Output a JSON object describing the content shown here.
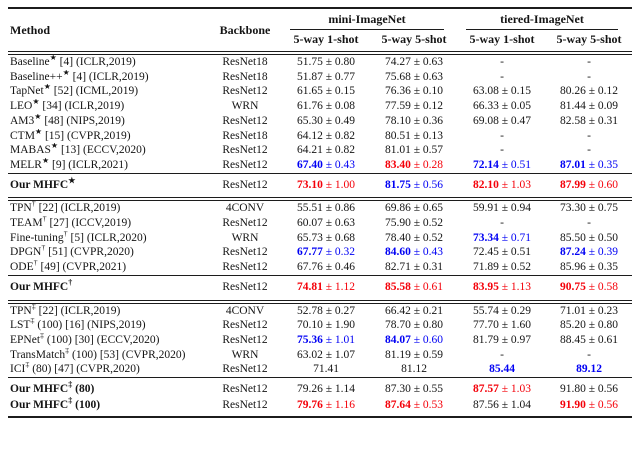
{
  "table": {
    "headers": {
      "method": "Method",
      "backbone": "Backbone",
      "groups": [
        "mini-ImageNet",
        "tiered-ImageNet"
      ],
      "subcolumns": [
        "5-way 1-shot",
        "5-way 5-shot",
        "5-way 1-shot",
        "5-way 5-shot"
      ]
    },
    "colors": {
      "best": "#f40009",
      "second": "#0000f4",
      "normal": "#141414"
    },
    "symbols": {
      "star": "★",
      "dagger": "†",
      "double_dagger": "‡",
      "plus_minus": "±",
      "missing": "-"
    },
    "sections": [
      {
        "rows": [
          {
            "name": "Baseline",
            "sup": "★",
            "rest": " [4] (ICLR,2019)",
            "backbone": "ResNet18",
            "cells": [
              {
                "v": "51.75",
                "pm": "0.80"
              },
              {
                "v": "74.27",
                "pm": "0.63"
              },
              {
                "dash": true
              },
              {
                "dash": true
              }
            ]
          },
          {
            "name": "Baseline++",
            "sup": "★",
            "rest": " [4] (ICLR,2019)",
            "backbone": "ResNet18",
            "cells": [
              {
                "v": "51.87",
                "pm": "0.77"
              },
              {
                "v": "75.68",
                "pm": "0.63"
              },
              {
                "dash": true
              },
              {
                "dash": true
              }
            ]
          },
          {
            "name": "TapNet",
            "sup": "★",
            "rest": " [52] (ICML,2019)",
            "backbone": "ResNet12",
            "cells": [
              {
                "v": "61.65",
                "pm": "0.15"
              },
              {
                "v": "76.36",
                "pm": "0.10"
              },
              {
                "v": "63.08",
                "pm": "0.15"
              },
              {
                "v": "80.26",
                "pm": "0.12"
              }
            ]
          },
          {
            "name": "LEO",
            "sup": "★",
            "rest": " [34] (ICLR,2019)",
            "backbone": "WRN",
            "cells": [
              {
                "v": "61.76",
                "pm": "0.08"
              },
              {
                "v": "77.59",
                "pm": "0.12"
              },
              {
                "v": "66.33",
                "pm": "0.05"
              },
              {
                "v": "81.44",
                "pm": "0.09"
              }
            ]
          },
          {
            "name": "AM3",
            "sup": "★",
            "rest": " [48] (NIPS,2019)",
            "backbone": "ResNet12",
            "cells": [
              {
                "v": "65.30",
                "pm": "0.49"
              },
              {
                "v": "78.10",
                "pm": "0.36"
              },
              {
                "v": "69.08",
                "pm": "0.47"
              },
              {
                "v": "82.58",
                "pm": "0.31"
              }
            ]
          },
          {
            "name": "CTM",
            "sup": "★",
            "rest": " [15] (CVPR,2019)",
            "backbone": "ResNet18",
            "cells": [
              {
                "v": "64.12",
                "pm": "0.82"
              },
              {
                "v": "80.51",
                "pm": "0.13"
              },
              {
                "dash": true
              },
              {
                "dash": true
              }
            ]
          },
          {
            "name": "MABAS",
            "sup": "★",
            "rest": " [13] (ECCV,2020)",
            "backbone": "ResNet12",
            "cells": [
              {
                "v": "64.21",
                "pm": "0.82"
              },
              {
                "v": "81.01",
                "pm": "0.57"
              },
              {
                "dash": true
              },
              {
                "dash": true
              }
            ]
          },
          {
            "name": "MELR",
            "sup": "★",
            "rest": " [9] (ICLR,2021)",
            "backbone": "ResNet12",
            "cells": [
              {
                "v": "67.40",
                "pm": "0.43",
                "hl": "second"
              },
              {
                "v": "83.40",
                "pm": "0.28",
                "hl": "best"
              },
              {
                "v": "72.14",
                "pm": "0.51",
                "hl": "second"
              },
              {
                "v": "87.01",
                "pm": "0.35",
                "hl": "second"
              }
            ]
          }
        ],
        "our_rows": [
          {
            "name": "Our MHFC",
            "sup": "★",
            "rest": "",
            "backbone": "ResNet12",
            "cells": [
              {
                "v": "73.10",
                "pm": "1.00",
                "hl": "best"
              },
              {
                "v": "81.75",
                "pm": "0.56",
                "hl": "second"
              },
              {
                "v": "82.10",
                "pm": "1.03",
                "hl": "best"
              },
              {
                "v": "87.99",
                "pm": "0.60",
                "hl": "best"
              }
            ]
          }
        ]
      },
      {
        "rows": [
          {
            "name": "TPN",
            "sup": "†",
            "rest": " [22] (ICLR,2019)",
            "backbone": "4CONV",
            "cells": [
              {
                "v": "55.51",
                "pm": "0.86"
              },
              {
                "v": "69.86",
                "pm": "0.65"
              },
              {
                "v": "59.91",
                "pm": "0.94"
              },
              {
                "v": "73.30",
                "pm": "0.75"
              }
            ]
          },
          {
            "name": "TEAM",
            "sup": "†",
            "rest": " [27] (ICCV,2019)",
            "backbone": "ResNet12",
            "cells": [
              {
                "v": "60.07",
                "pm": "0.63"
              },
              {
                "v": "75.90",
                "pm": "0.52"
              },
              {
                "dash": true
              },
              {
                "dash": true
              }
            ]
          },
          {
            "name": "Fine-tuning",
            "sup": "†",
            "rest": " [5] (ICLR,2020)",
            "backbone": "WRN",
            "cells": [
              {
                "v": "65.73",
                "pm": "0.68"
              },
              {
                "v": "78.40",
                "pm": "0.52"
              },
              {
                "v": "73.34",
                "pm": "0.71",
                "hl": "second"
              },
              {
                "v": "85.50",
                "pm": "0.50"
              }
            ]
          },
          {
            "name": "DPGN",
            "sup": "†",
            "rest": " [51] (CVPR,2020)",
            "backbone": "ResNet12",
            "cells": [
              {
                "v": "67.77",
                "pm": "0.32",
                "hl": "second"
              },
              {
                "v": "84.60",
                "pm": "0.43",
                "hl": "second"
              },
              {
                "v": "72.45",
                "pm": "0.51"
              },
              {
                "v": "87.24",
                "pm": "0.39",
                "hl": "second"
              }
            ]
          },
          {
            "name": "ODE",
            "sup": "†",
            "rest": " [49] (CVPR,2021)",
            "backbone": "ResNet12",
            "cells": [
              {
                "v": "67.76",
                "pm": "0.46"
              },
              {
                "v": "82.71",
                "pm": "0.31"
              },
              {
                "v": "71.89",
                "pm": "0.52"
              },
              {
                "v": "85.96",
                "pm": "0.35"
              }
            ]
          }
        ],
        "our_rows": [
          {
            "name": "Our MHFC",
            "sup": "†",
            "rest": "",
            "backbone": "ResNet12",
            "cells": [
              {
                "v": "74.81",
                "pm": "1.12",
                "hl": "best"
              },
              {
                "v": "85.58",
                "pm": "0.61",
                "hl": "best"
              },
              {
                "v": "83.95",
                "pm": "1.13",
                "hl": "best"
              },
              {
                "v": "90.75",
                "pm": "0.58",
                "hl": "best"
              }
            ]
          }
        ]
      },
      {
        "rows": [
          {
            "name": "TPN",
            "sup": "‡",
            "rest": " [22] (ICLR,2019)",
            "backbone": "4CONV",
            "cells": [
              {
                "v": "52.78",
                "pm": "0.27"
              },
              {
                "v": "66.42",
                "pm": "0.21"
              },
              {
                "v": "55.74",
                "pm": "0.29"
              },
              {
                "v": "71.01",
                "pm": "0.23"
              }
            ]
          },
          {
            "name": "LST",
            "sup": "‡",
            "rest": " (100) [16] (NIPS,2019)",
            "backbone": "ResNet12",
            "cells": [
              {
                "v": "70.10",
                "pm": "1.90"
              },
              {
                "v": "78.70",
                "pm": "0.80"
              },
              {
                "v": "77.70",
                "pm": "1.60"
              },
              {
                "v": "85.20",
                "pm": "0.80"
              }
            ]
          },
          {
            "name": "EPNet",
            "sup": "‡",
            "rest": " (100) [30] (ECCV,2020)",
            "backbone": "ResNet12",
            "cells": [
              {
                "v": "75.36",
                "pm": "1.01",
                "hl": "second"
              },
              {
                "v": "84.07",
                "pm": "0.60",
                "hl": "second"
              },
              {
                "v": "81.79",
                "pm": "0.97"
              },
              {
                "v": "88.45",
                "pm": "0.61"
              }
            ]
          },
          {
            "name": "TransMatch",
            "sup": "‡",
            "rest": " (100) [53] (CVPR,2020)",
            "backbone": "WRN",
            "cells": [
              {
                "v": "63.02",
                "pm": "1.07"
              },
              {
                "v": "81.19",
                "pm": "0.59"
              },
              {
                "dash": true
              },
              {
                "dash": true
              }
            ]
          },
          {
            "name": "ICI",
            "sup": "‡",
            "rest": " (80) [47] (CVPR,2020)",
            "backbone": "ResNet12",
            "cells": [
              {
                "v": "71.41"
              },
              {
                "v": "81.12"
              },
              {
                "v": "85.44",
                "hl": "second"
              },
              {
                "v": "89.12",
                "hl": "second"
              }
            ]
          }
        ],
        "our_rows": [
          {
            "name": "Our MHFC",
            "sup": "‡",
            "rest": " (80)",
            "backbone": "ResNet12",
            "cells": [
              {
                "v": "79.26",
                "pm": "1.14"
              },
              {
                "v": "87.30",
                "pm": "0.55"
              },
              {
                "v": "87.57",
                "pm": "1.03",
                "hl": "best"
              },
              {
                "v": "91.80",
                "pm": "0.56"
              }
            ]
          },
          {
            "name": "Our MHFC",
            "sup": "‡",
            "rest": " (100)",
            "backbone": "ResNet12",
            "cells": [
              {
                "v": "79.76",
                "pm": "1.16",
                "hl": "best"
              },
              {
                "v": "87.64",
                "pm": "0.53",
                "hl": "best"
              },
              {
                "v": "87.56",
                "pm": "1.04"
              },
              {
                "v": "91.90",
                "pm": "0.56",
                "hl": "best"
              }
            ]
          }
        ]
      }
    ]
  }
}
